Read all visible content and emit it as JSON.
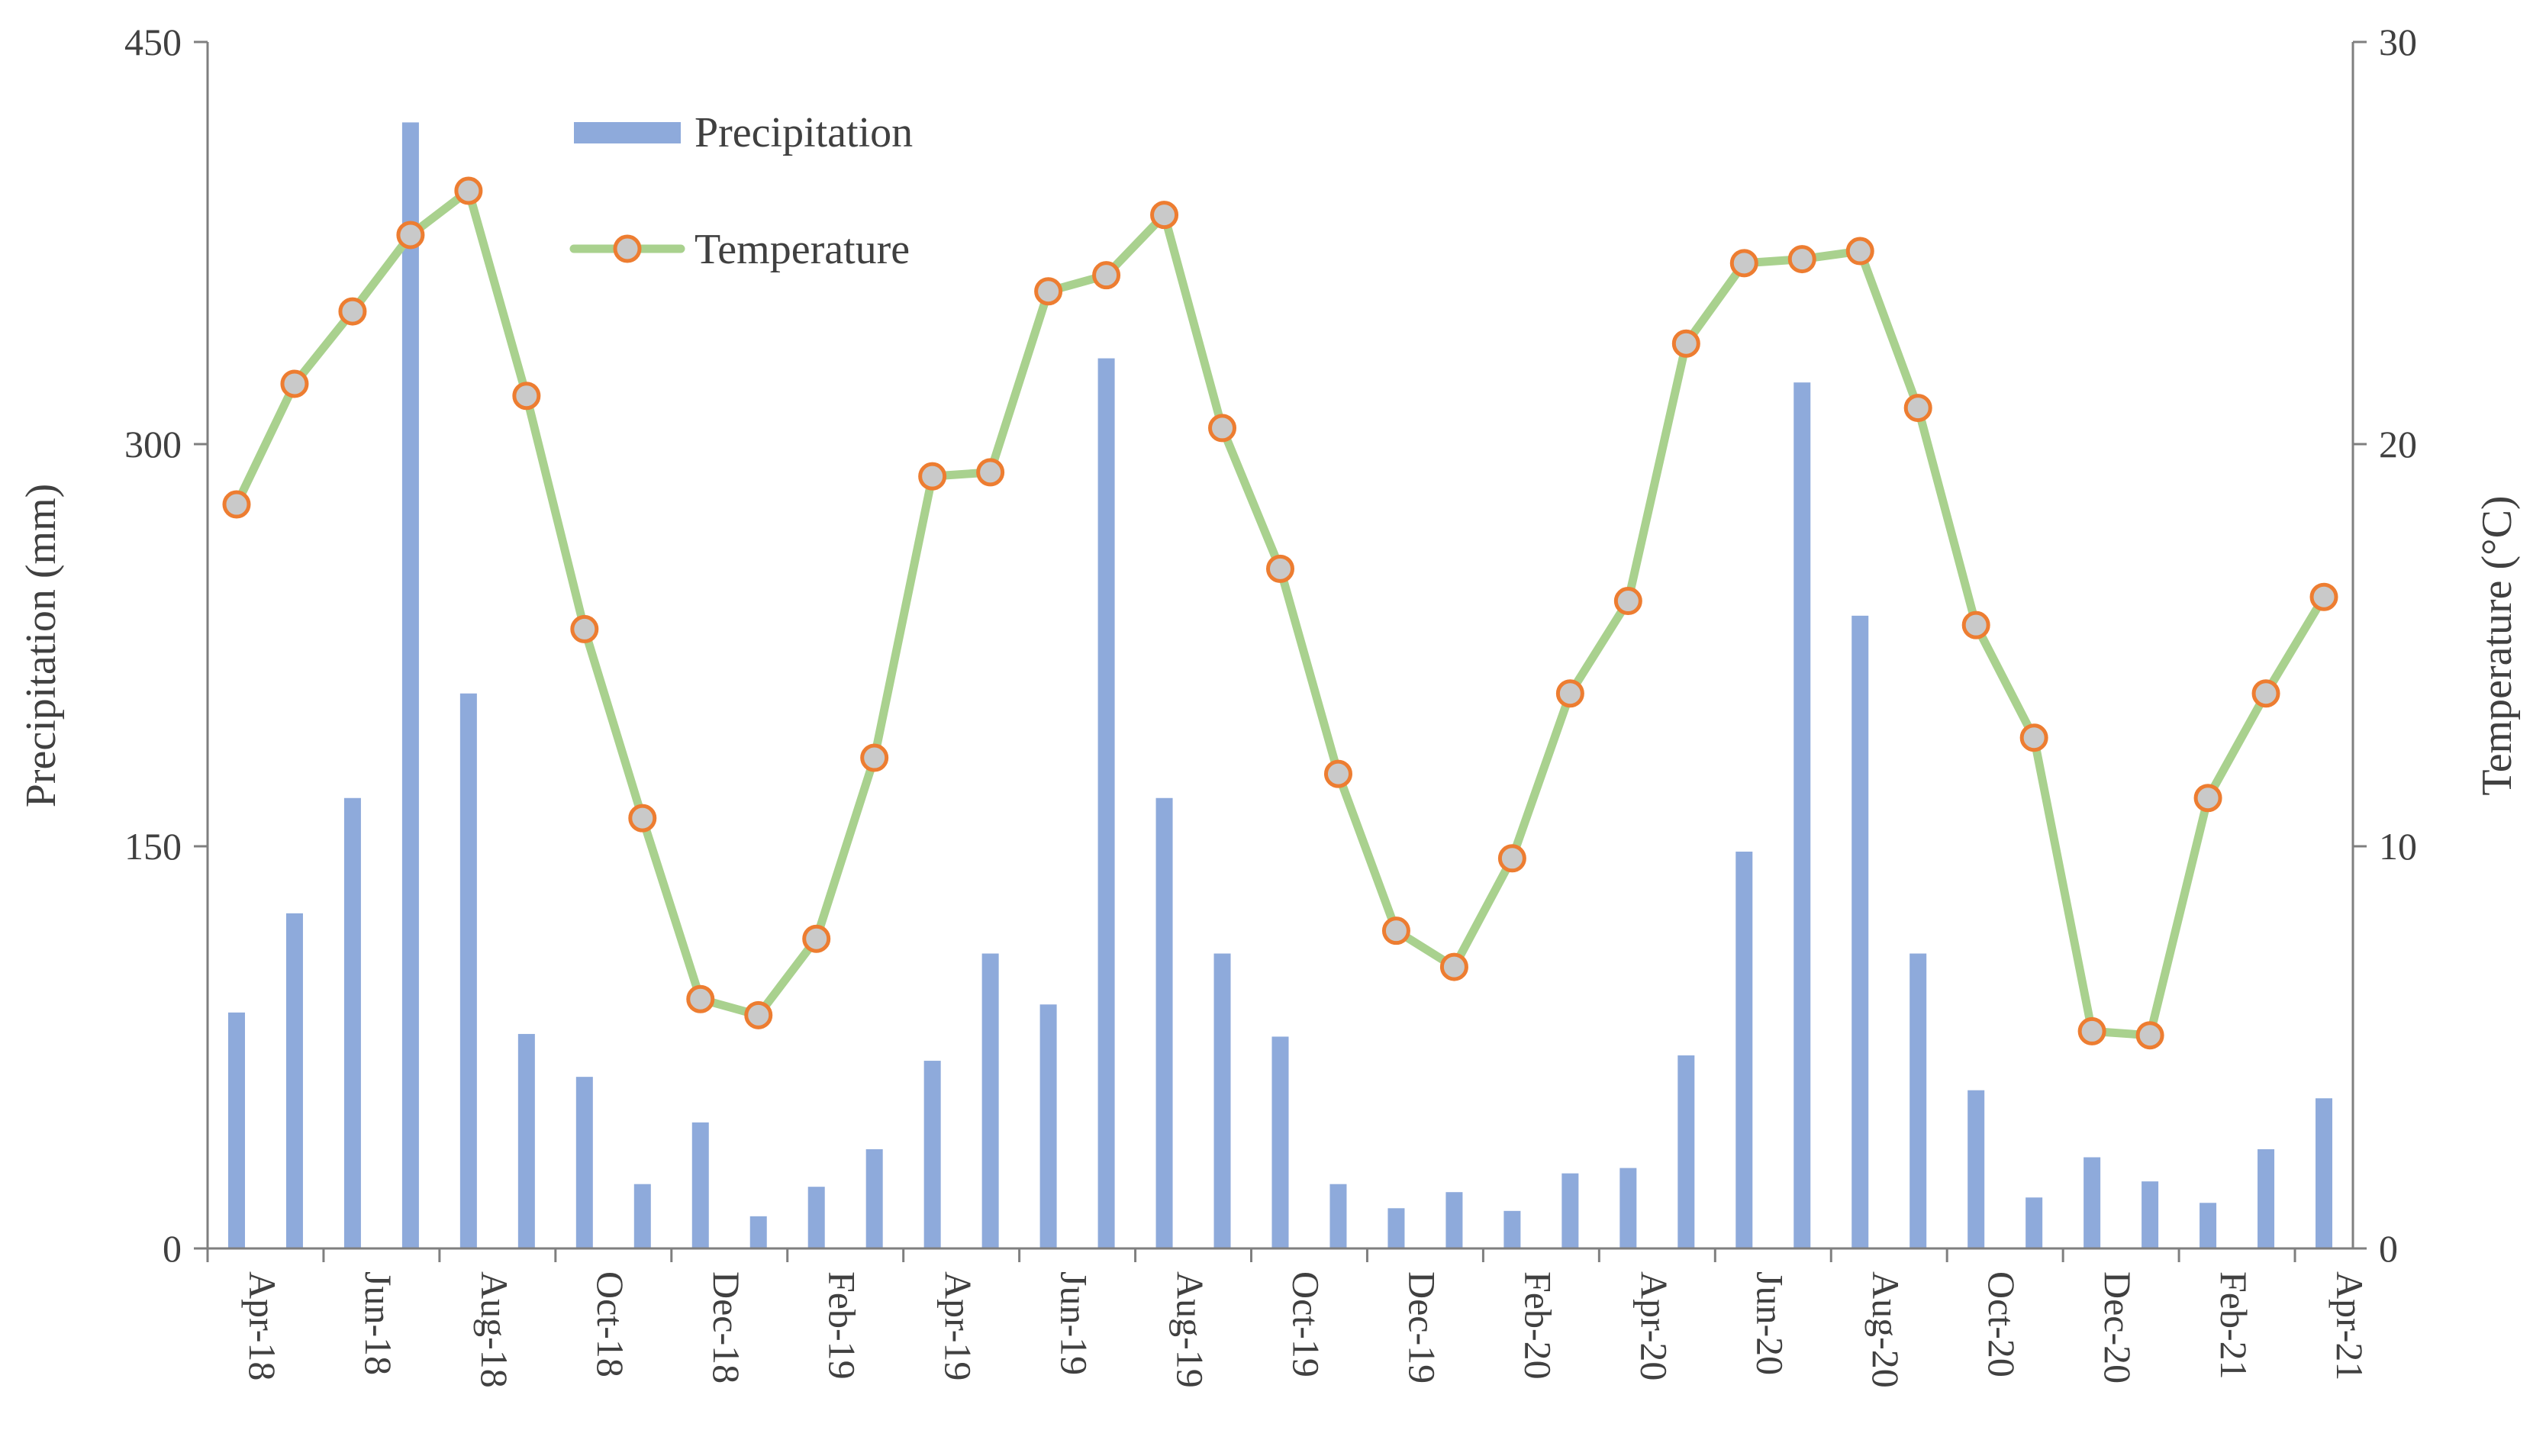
{
  "chart_data": {
    "type": "bar",
    "title": "",
    "xlabel": "",
    "ylabel": "Precipitation (mm)",
    "y2label": "Temperature (°C)",
    "ylim": [
      0,
      450
    ],
    "y2lim": [
      0,
      30
    ],
    "yticks": [
      "0",
      "150",
      "300",
      "450"
    ],
    "y2ticks": [
      "0",
      "10",
      "20",
      "30"
    ],
    "grid": false,
    "legend_position": "top-left",
    "categories": [
      "Apr-18",
      "May-18",
      "Jun-18",
      "Jul-18",
      "Aug-18",
      "Sep-18",
      "Oct-18",
      "Nov-18",
      "Dec-18",
      "Jan-19",
      "Feb-19",
      "Mar-19",
      "Apr-19",
      "May-19",
      "Jun-19",
      "Jul-19",
      "Aug-19",
      "Sep-19",
      "Oct-19",
      "Nov-19",
      "Dec-19",
      "Jan-20",
      "Feb-20",
      "Mar-20",
      "Apr-20",
      "May-20",
      "Jun-20",
      "Jul-20",
      "Aug-20",
      "Sep-20",
      "Oct-20",
      "Nov-20",
      "Dec-20",
      "Jan-21",
      "Feb-21",
      "Mar-21",
      "Apr-21"
    ],
    "xtick_labels": [
      "Apr-18",
      "Jun-18",
      "Aug-18",
      "Oct-18",
      "Dec-18",
      "Feb-19",
      "Apr-19",
      "Jun-19",
      "Aug-19",
      "Oct-19",
      "Dec-19",
      "Feb-20",
      "Apr-20",
      "Jun-20",
      "Aug-20",
      "Oct-20",
      "Dec-20",
      "Feb-21",
      "Apr-21"
    ],
    "series": [
      {
        "name": "Precipitation",
        "type": "bar",
        "axis": "left",
        "color": "#8eaadb",
        "values": [
          88,
          125,
          168,
          420,
          207,
          80,
          64,
          24,
          47,
          12,
          23,
          37,
          70,
          110,
          91,
          332,
          168,
          110,
          79,
          24,
          15,
          21,
          14,
          28,
          30,
          72,
          148,
          323,
          236,
          110,
          59,
          19,
          34,
          25,
          17,
          37,
          56
        ]
      },
      {
        "name": "Temperature",
        "type": "line",
        "axis": "right",
        "color": "#a9d18e",
        "marker_fill": "#c9c9c9",
        "marker_edge": "#ed7d31",
        "values": [
          18.5,
          21.5,
          23.3,
          25.2,
          26.3,
          21.2,
          15.4,
          10.7,
          6.2,
          5.8,
          7.7,
          12.2,
          19.2,
          19.3,
          23.8,
          24.2,
          25.7,
          20.4,
          16.9,
          11.8,
          7.9,
          7.0,
          9.7,
          13.8,
          16.1,
          22.5,
          24.5,
          24.6,
          24.8,
          20.9,
          15.5,
          12.7,
          5.4,
          5.3,
          11.2,
          13.8,
          16.2
        ]
      }
    ]
  }
}
